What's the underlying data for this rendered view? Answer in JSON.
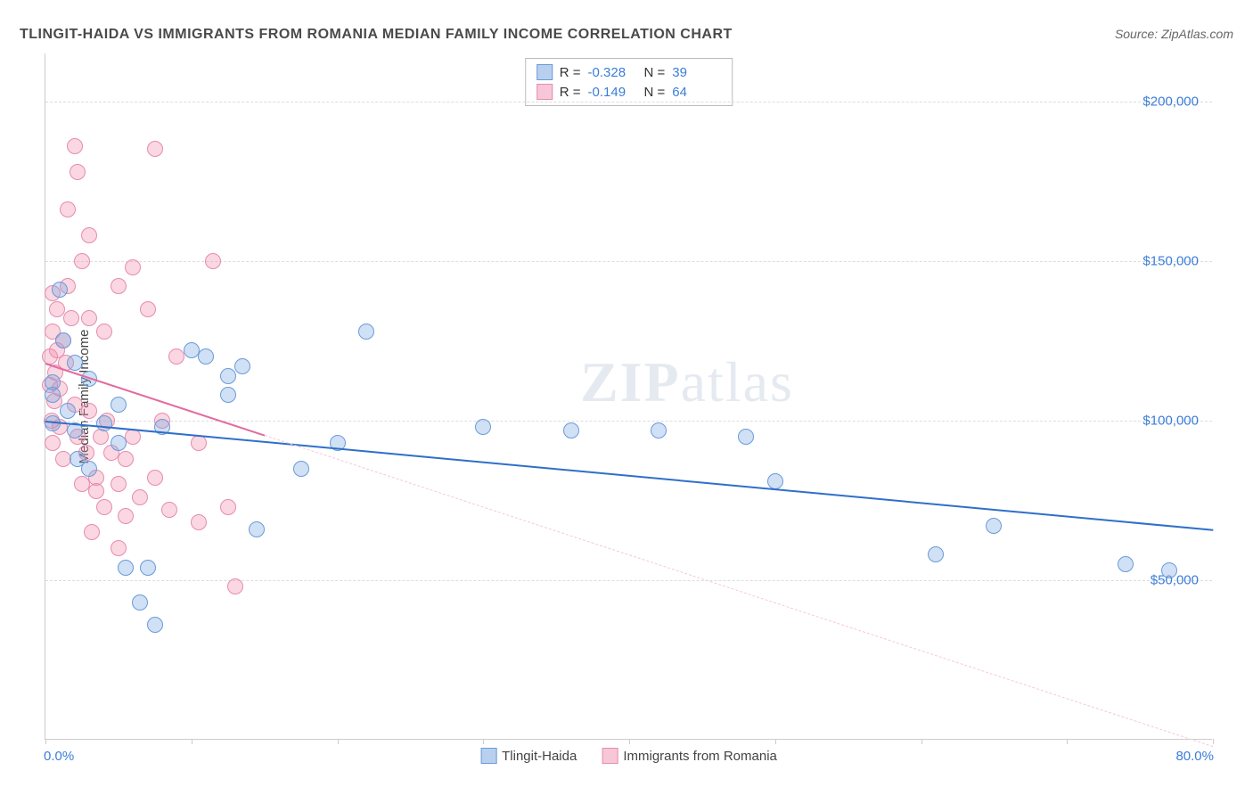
{
  "title": "TLINGIT-HAIDA VS IMMIGRANTS FROM ROMANIA MEDIAN FAMILY INCOME CORRELATION CHART",
  "source_prefix": "Source: ",
  "source_name": "ZipAtlas.com",
  "y_axis_title": "Median Family Income",
  "watermark_a": "ZIP",
  "watermark_b": "atlas",
  "chart": {
    "type": "scatter",
    "xlim": [
      0,
      80
    ],
    "ylim": [
      0,
      215000
    ],
    "x_tick_positions": [
      0,
      10,
      20,
      30,
      40,
      50,
      60,
      70,
      80
    ],
    "x_label_min": "0.0%",
    "x_label_max": "80.0%",
    "y_grid": [
      {
        "value": 50000,
        "label": "$50,000"
      },
      {
        "value": 100000,
        "label": "$100,000"
      },
      {
        "value": 150000,
        "label": "$150,000"
      },
      {
        "value": 200000,
        "label": "$200,000"
      }
    ],
    "background_color": "#ffffff",
    "grid_color": "#dddddd",
    "axis_color": "#cccccc",
    "tick_label_color": "#3b7dd8",
    "marker_radius": 9,
    "marker_stroke_width": 1.5,
    "series": [
      {
        "name": "Tlingit-Haida",
        "fill": "rgba(120,165,225,0.35)",
        "stroke": "#6a9bd8",
        "swatch_fill": "#b8d0ee",
        "swatch_stroke": "#6a9bd8",
        "R": "-0.328",
        "N": "39",
        "trend": {
          "x1": 0,
          "y1": 100000,
          "x2": 80,
          "y2": 66000,
          "solid_until_x": 80,
          "color": "#2f6fc9",
          "width": 2
        },
        "points": [
          [
            0.5,
            112000
          ],
          [
            0.5,
            99000
          ],
          [
            0.5,
            108000
          ],
          [
            1.0,
            141000
          ],
          [
            1.2,
            125000
          ],
          [
            1.5,
            103000
          ],
          [
            2.0,
            118000
          ],
          [
            2.0,
            97000
          ],
          [
            2.2,
            88000
          ],
          [
            3.0,
            113000
          ],
          [
            3.0,
            85000
          ],
          [
            4.0,
            99000
          ],
          [
            5.0,
            93000
          ],
          [
            5.0,
            105000
          ],
          [
            5.5,
            54000
          ],
          [
            6.5,
            43000
          ],
          [
            7.0,
            54000
          ],
          [
            7.5,
            36000
          ],
          [
            8.0,
            98000
          ],
          [
            10.0,
            122000
          ],
          [
            11.0,
            120000
          ],
          [
            12.5,
            108000
          ],
          [
            12.5,
            114000
          ],
          [
            13.5,
            117000
          ],
          [
            14.5,
            66000
          ],
          [
            17.5,
            85000
          ],
          [
            20.0,
            93000
          ],
          [
            22.0,
            128000
          ],
          [
            30.0,
            98000
          ],
          [
            36.0,
            97000
          ],
          [
            42.0,
            97000
          ],
          [
            48.0,
            95000
          ],
          [
            50.0,
            81000
          ],
          [
            61.0,
            58000
          ],
          [
            65.0,
            67000
          ],
          [
            74.0,
            55000
          ],
          [
            77.0,
            53000
          ]
        ]
      },
      {
        "name": "Immigrants from Romania",
        "fill": "rgba(240,140,170,0.35)",
        "stroke": "#e78bb0",
        "swatch_fill": "#f7c7d7",
        "swatch_stroke": "#e78bb0",
        "R": "-0.149",
        "N": "64",
        "trend": {
          "x1": 0,
          "y1": 118000,
          "x2": 80,
          "y2": -2000,
          "solid_until_x": 15,
          "color": "#e36aa0",
          "width": 2,
          "dash_color": "#f7c7d7"
        },
        "points": [
          [
            0.3,
            111000
          ],
          [
            0.3,
            120000
          ],
          [
            0.4,
            100000
          ],
          [
            0.5,
            140000
          ],
          [
            0.5,
            128000
          ],
          [
            0.5,
            93000
          ],
          [
            0.6,
            106000
          ],
          [
            0.7,
            115000
          ],
          [
            0.8,
            122000
          ],
          [
            0.8,
            135000
          ],
          [
            1.0,
            110000
          ],
          [
            1.0,
            98000
          ],
          [
            1.2,
            88000
          ],
          [
            1.2,
            125000
          ],
          [
            1.4,
            118000
          ],
          [
            1.5,
            142000
          ],
          [
            1.5,
            166000
          ],
          [
            1.8,
            132000
          ],
          [
            2.0,
            105000
          ],
          [
            2.0,
            186000
          ],
          [
            2.2,
            95000
          ],
          [
            2.2,
            178000
          ],
          [
            2.5,
            150000
          ],
          [
            2.5,
            80000
          ],
          [
            2.8,
            90000
          ],
          [
            3.0,
            158000
          ],
          [
            3.0,
            132000
          ],
          [
            3.0,
            103000
          ],
          [
            3.2,
            65000
          ],
          [
            3.5,
            82000
          ],
          [
            3.5,
            78000
          ],
          [
            3.8,
            95000
          ],
          [
            4.0,
            128000
          ],
          [
            4.0,
            73000
          ],
          [
            4.2,
            100000
          ],
          [
            4.5,
            90000
          ],
          [
            5.0,
            142000
          ],
          [
            5.0,
            80000
          ],
          [
            5.0,
            60000
          ],
          [
            5.5,
            70000
          ],
          [
            5.5,
            88000
          ],
          [
            6.0,
            95000
          ],
          [
            6.0,
            148000
          ],
          [
            6.5,
            76000
          ],
          [
            7.0,
            135000
          ],
          [
            7.5,
            82000
          ],
          [
            7.5,
            185000
          ],
          [
            8.0,
            100000
          ],
          [
            8.5,
            72000
          ],
          [
            9.0,
            120000
          ],
          [
            10.5,
            93000
          ],
          [
            10.5,
            68000
          ],
          [
            11.5,
            150000
          ],
          [
            12.5,
            73000
          ],
          [
            13.0,
            48000
          ]
        ]
      }
    ]
  },
  "stats_labels": {
    "R": "R =",
    "N": "N ="
  },
  "legend_bottom": [
    {
      "label": "Tlingit-Haida",
      "series_idx": 0
    },
    {
      "label": "Immigrants from Romania",
      "series_idx": 1
    }
  ]
}
